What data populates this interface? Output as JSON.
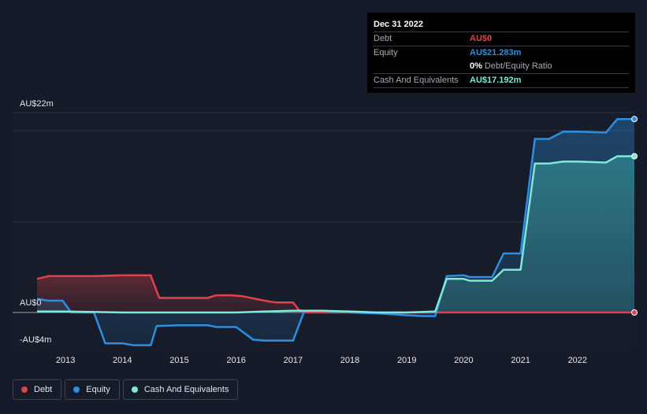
{
  "chart_data": {
    "type": "area",
    "title": "",
    "xlabel": "",
    "ylabel": "",
    "ylim": [
      -4,
      22
    ],
    "y_ticks": [
      {
        "value": 22,
        "label": "AU$22m"
      },
      {
        "value": 0,
        "label": "AU$0"
      },
      {
        "value": -4,
        "label": "-AU$4m"
      }
    ],
    "x_ticks": [
      "2013",
      "2014",
      "2015",
      "2016",
      "2017",
      "2018",
      "2019",
      "2020",
      "2021",
      "2022"
    ],
    "xlim": [
      2012.5,
      2023.0
    ],
    "series": [
      {
        "name": "Debt",
        "color": "#e0424b",
        "points": [
          [
            2012.5,
            3.7
          ],
          [
            2012.7,
            4.0
          ],
          [
            2013.0,
            4.0
          ],
          [
            2013.5,
            4.0
          ],
          [
            2014.0,
            4.1
          ],
          [
            2014.5,
            4.1
          ],
          [
            2014.55,
            3.2
          ],
          [
            2014.65,
            1.6
          ],
          [
            2015.0,
            1.6
          ],
          [
            2015.5,
            1.6
          ],
          [
            2015.65,
            1.9
          ],
          [
            2015.9,
            1.9
          ],
          [
            2016.1,
            1.8
          ],
          [
            2016.5,
            1.3
          ],
          [
            2016.7,
            1.1
          ],
          [
            2017.0,
            1.1
          ],
          [
            2017.1,
            0.3
          ],
          [
            2017.2,
            0.0
          ],
          [
            2018.0,
            0.0
          ],
          [
            2019.0,
            0.0
          ],
          [
            2020.0,
            0.0
          ],
          [
            2021.0,
            0.0
          ],
          [
            2022.0,
            0.0
          ],
          [
            2023.0,
            0.0
          ]
        ]
      },
      {
        "name": "Equity",
        "color": "#2e8fe0",
        "points": [
          [
            2012.5,
            1.5
          ],
          [
            2012.7,
            1.3
          ],
          [
            2012.95,
            1.3
          ],
          [
            2013.1,
            0.0
          ],
          [
            2013.5,
            0.0
          ],
          [
            2013.7,
            -3.4
          ],
          [
            2014.0,
            -3.4
          ],
          [
            2014.2,
            -3.6
          ],
          [
            2014.5,
            -3.6
          ],
          [
            2014.6,
            -1.5
          ],
          [
            2015.0,
            -1.4
          ],
          [
            2015.5,
            -1.4
          ],
          [
            2015.65,
            -1.6
          ],
          [
            2016.0,
            -1.6
          ],
          [
            2016.3,
            -3.0
          ],
          [
            2016.5,
            -3.1
          ],
          [
            2017.0,
            -3.1
          ],
          [
            2017.2,
            0.2
          ],
          [
            2017.5,
            0.2
          ],
          [
            2018.0,
            0.0
          ],
          [
            2018.5,
            -0.1
          ],
          [
            2019.0,
            -0.3
          ],
          [
            2019.3,
            -0.4
          ],
          [
            2019.5,
            -0.4
          ],
          [
            2019.7,
            4.0
          ],
          [
            2020.0,
            4.1
          ],
          [
            2020.1,
            3.9
          ],
          [
            2020.5,
            3.9
          ],
          [
            2020.7,
            6.5
          ],
          [
            2021.0,
            6.5
          ],
          [
            2021.25,
            19.1
          ],
          [
            2021.5,
            19.1
          ],
          [
            2021.75,
            19.9
          ],
          [
            2022.0,
            19.9
          ],
          [
            2022.5,
            19.8
          ],
          [
            2022.7,
            21.283
          ],
          [
            2023.0,
            21.283
          ]
        ]
      },
      {
        "name": "Cash And Equivalents",
        "color": "#7fe8d8",
        "points": [
          [
            2012.5,
            0.1
          ],
          [
            2013.0,
            0.1
          ],
          [
            2014.0,
            0.0
          ],
          [
            2015.0,
            0.0
          ],
          [
            2016.0,
            0.0
          ],
          [
            2016.5,
            0.1
          ],
          [
            2017.0,
            0.2
          ],
          [
            2017.5,
            0.2
          ],
          [
            2018.0,
            0.1
          ],
          [
            2018.5,
            0.0
          ],
          [
            2019.0,
            0.0
          ],
          [
            2019.5,
            0.1
          ],
          [
            2019.7,
            3.7
          ],
          [
            2020.0,
            3.7
          ],
          [
            2020.1,
            3.5
          ],
          [
            2020.5,
            3.5
          ],
          [
            2020.7,
            4.7
          ],
          [
            2021.0,
            4.7
          ],
          [
            2021.25,
            16.4
          ],
          [
            2021.5,
            16.4
          ],
          [
            2021.75,
            16.6
          ],
          [
            2022.0,
            16.6
          ],
          [
            2022.5,
            16.5
          ],
          [
            2022.7,
            17.192
          ],
          [
            2023.0,
            17.192
          ]
        ]
      }
    ],
    "tooltip": {
      "date": "Dec 31 2022",
      "debt_label": "Debt",
      "debt_value": "AU$0",
      "equity_label": "Equity",
      "equity_value": "AU$21.283m",
      "ratio_value": "0%",
      "ratio_label": "Debt/Equity Ratio",
      "cash_label": "Cash And Equivalents",
      "cash_value": "AU$17.192m"
    },
    "legend": [
      {
        "name": "Debt",
        "color": "#e0424b"
      },
      {
        "name": "Equity",
        "color": "#2e8fe0"
      },
      {
        "name": "Cash And Equivalents",
        "color": "#7fe8d8"
      }
    ]
  }
}
